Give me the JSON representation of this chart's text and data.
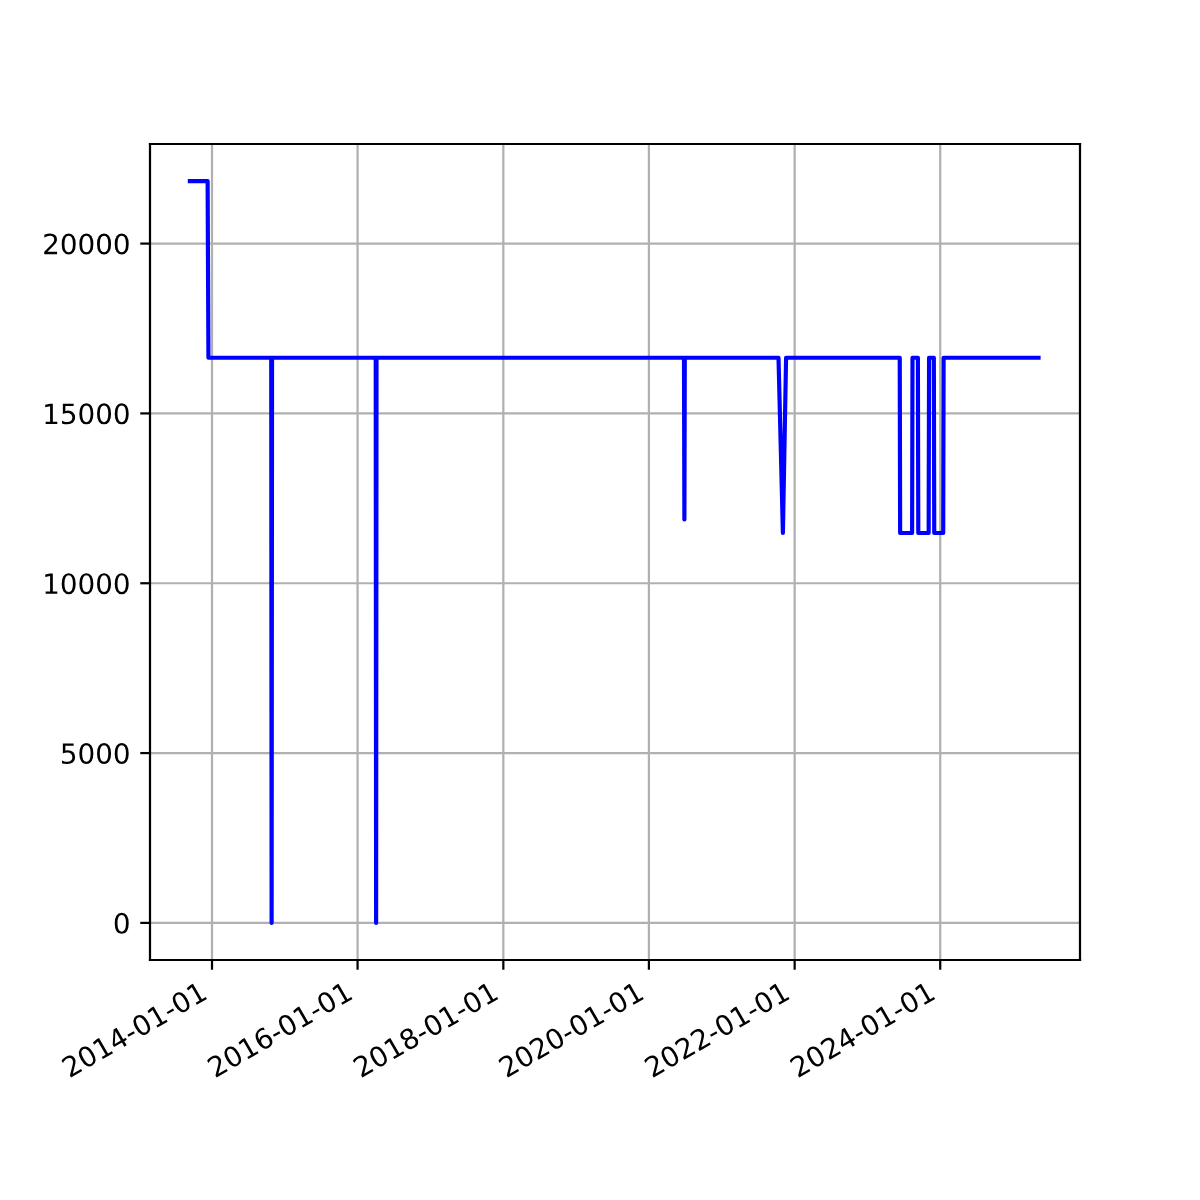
{
  "chart_data": {
    "type": "line",
    "x": [
      "2013-09-12",
      "2013-12-10",
      "2013-12-14",
      "2014-10-25",
      "2014-10-27",
      "2014-10-29",
      "2016-04-01",
      "2016-04-03",
      "2016-04-05",
      "2020-06-25",
      "2020-06-27",
      "2020-06-29",
      "2021-10-12",
      "2021-11-03",
      "2021-11-19",
      "2023-06-12",
      "2023-06-14",
      "2023-08-13",
      "2023-08-15",
      "2023-09-11",
      "2023-09-13",
      "2023-11-04",
      "2023-11-06",
      "2023-11-30",
      "2023-12-02",
      "2024-01-16",
      "2024-01-18",
      "2025-05-08"
    ],
    "series": [
      {
        "color": "#0000ff",
        "values": [
          21840,
          21840,
          16640,
          16640,
          0,
          16640,
          16640,
          0,
          16640,
          16640,
          11880,
          16640,
          16640,
          11480,
          16640,
          16640,
          11480,
          11480,
          16640,
          16640,
          11480,
          11480,
          16640,
          16640,
          11480,
          11480,
          16640,
          16640
        ]
      }
    ],
    "xlim": [
      "2013-02-24",
      "2025-12-02"
    ],
    "xticks": [
      "2014-01-01",
      "2016-01-01",
      "2018-01-01",
      "2020-01-01",
      "2022-01-01",
      "2024-01-01"
    ],
    "ylim": [
      -1092,
      22932
    ],
    "yticks": [
      0,
      5000,
      10000,
      15000,
      20000
    ],
    "grid": true,
    "line_style": "solid",
    "marker": "none"
  }
}
